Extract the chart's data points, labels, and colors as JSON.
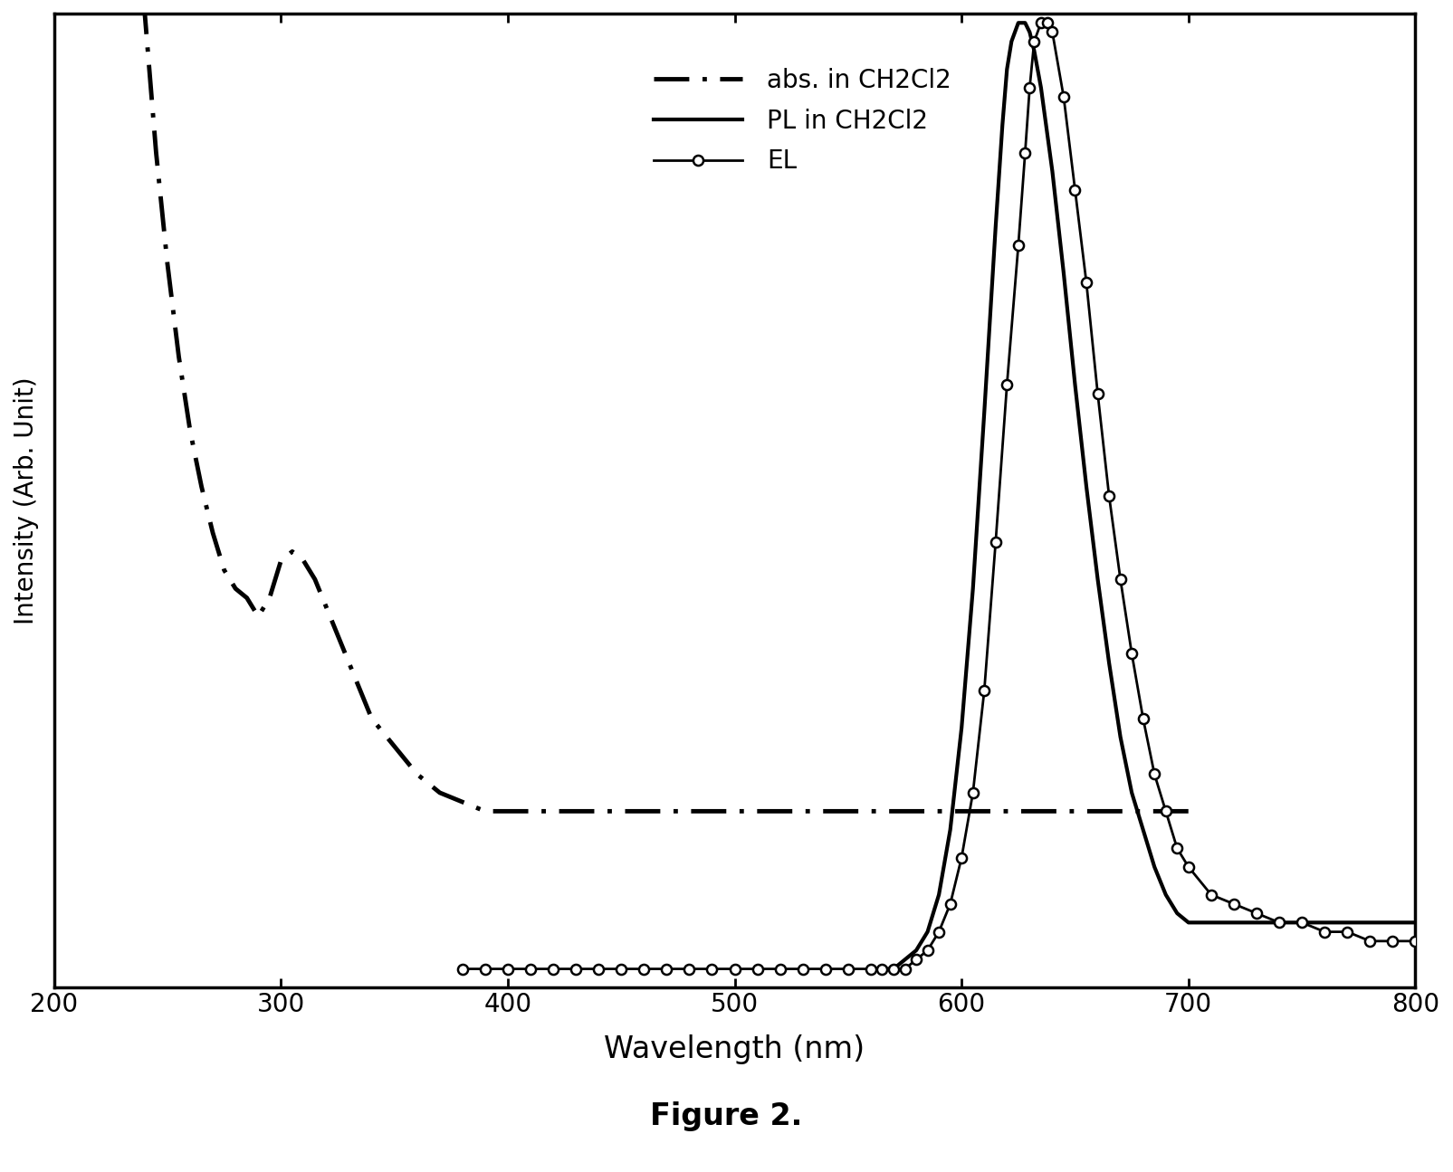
{
  "title": "",
  "xlabel": "Wavelength (nm)",
  "ylabel": "Intensity (Arb. Unit)",
  "figure_caption": "Figure 2.",
  "xlim": [
    200,
    800
  ],
  "ylim": [
    0,
    1.05
  ],
  "xticks": [
    200,
    300,
    400,
    500,
    600,
    700,
    800
  ],
  "background_color": "#ffffff",
  "legend_labels": [
    "abs. in CH2Cl2",
    "PL in CH2Cl2",
    "EL"
  ],
  "abs_x": [
    200,
    205,
    210,
    215,
    220,
    225,
    230,
    235,
    240,
    245,
    250,
    255,
    260,
    265,
    270,
    275,
    280,
    285,
    290,
    295,
    300,
    305,
    310,
    315,
    320,
    325,
    330,
    335,
    340,
    350,
    360,
    370,
    380,
    390,
    400,
    420,
    440,
    460,
    480,
    500,
    520,
    540,
    560,
    580,
    600,
    620,
    640,
    660,
    680,
    700
  ],
  "abs_y": [
    2.8,
    2.5,
    2.2,
    2.0,
    1.8,
    1.6,
    1.4,
    1.2,
    1.05,
    0.9,
    0.78,
    0.68,
    0.6,
    0.54,
    0.49,
    0.45,
    0.43,
    0.42,
    0.4,
    0.42,
    0.46,
    0.47,
    0.46,
    0.44,
    0.41,
    0.38,
    0.35,
    0.32,
    0.29,
    0.26,
    0.23,
    0.21,
    0.2,
    0.19,
    0.19,
    0.19,
    0.19,
    0.19,
    0.19,
    0.19,
    0.19,
    0.19,
    0.19,
    0.19,
    0.19,
    0.19,
    0.19,
    0.19,
    0.19,
    0.19
  ],
  "pl_x": [
    560,
    565,
    570,
    575,
    580,
    585,
    590,
    595,
    600,
    605,
    610,
    615,
    618,
    620,
    622,
    625,
    628,
    630,
    632,
    635,
    640,
    645,
    650,
    655,
    660,
    665,
    670,
    675,
    680,
    685,
    690,
    695,
    700,
    710,
    720,
    750,
    800
  ],
  "pl_y": [
    0.02,
    0.02,
    0.02,
    0.03,
    0.04,
    0.06,
    0.1,
    0.17,
    0.28,
    0.43,
    0.62,
    0.82,
    0.93,
    0.99,
    1.02,
    1.04,
    1.04,
    1.03,
    1.01,
    0.97,
    0.88,
    0.77,
    0.65,
    0.54,
    0.44,
    0.35,
    0.27,
    0.21,
    0.17,
    0.13,
    0.1,
    0.08,
    0.07,
    0.07,
    0.07,
    0.07,
    0.07
  ],
  "el_x": [
    380,
    390,
    400,
    410,
    420,
    430,
    440,
    450,
    460,
    470,
    480,
    490,
    500,
    510,
    520,
    530,
    540,
    550,
    560,
    565,
    570,
    575,
    580,
    585,
    590,
    595,
    600,
    605,
    610,
    615,
    620,
    625,
    628,
    630,
    632,
    635,
    638,
    640,
    645,
    650,
    655,
    660,
    665,
    670,
    675,
    680,
    685,
    690,
    695,
    700,
    710,
    720,
    730,
    740,
    750,
    760,
    770,
    780,
    790,
    800
  ],
  "el_y": [
    0.02,
    0.02,
    0.02,
    0.02,
    0.02,
    0.02,
    0.02,
    0.02,
    0.02,
    0.02,
    0.02,
    0.02,
    0.02,
    0.02,
    0.02,
    0.02,
    0.02,
    0.02,
    0.02,
    0.02,
    0.02,
    0.02,
    0.03,
    0.04,
    0.06,
    0.09,
    0.14,
    0.21,
    0.32,
    0.48,
    0.65,
    0.8,
    0.9,
    0.97,
    1.02,
    1.04,
    1.04,
    1.03,
    0.96,
    0.86,
    0.76,
    0.64,
    0.53,
    0.44,
    0.36,
    0.29,
    0.23,
    0.19,
    0.15,
    0.13,
    0.1,
    0.09,
    0.08,
    0.07,
    0.07,
    0.06,
    0.06,
    0.05,
    0.05,
    0.05
  ]
}
